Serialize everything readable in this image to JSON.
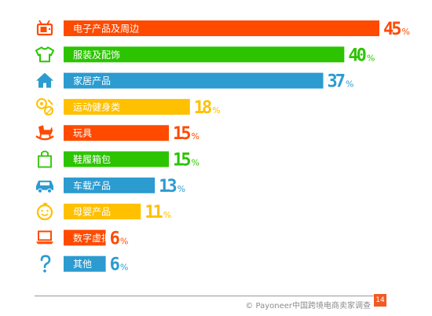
{
  "chart_data": {
    "type": "bar",
    "orientation": "horizontal",
    "categories": [
      "电子产品及周边",
      "服装及配饰",
      "家居产品",
      "运动健身类",
      "玩具",
      "鞋履箱包",
      "车载产品",
      "母婴产品",
      "数字虚拟产品",
      "其他"
    ],
    "values": [
      45,
      40,
      37,
      18,
      15,
      15,
      13,
      11,
      6,
      6
    ],
    "value_suffix": "%",
    "colors": [
      "#ff4a00",
      "#2cc400",
      "#2b9bd0",
      "#ffc000",
      "#ff4a00",
      "#2cc400",
      "#2b9bd0",
      "#ffc000",
      "#ff4a00",
      "#2b9bd0"
    ],
    "icons": [
      "tv-icon",
      "tshirt-icon",
      "house-icon",
      "sports-balls-icon",
      "rocking-horse-icon",
      "shopping-bag-icon",
      "car-icon",
      "baby-face-icon",
      "laptop-icon",
      "question-mark-icon"
    ],
    "xlim": [
      0,
      45
    ],
    "grid": false,
    "legend": "none"
  },
  "footer": {
    "source": "© Payoneer中国跨境电商卖家调查",
    "page_number": "14"
  }
}
